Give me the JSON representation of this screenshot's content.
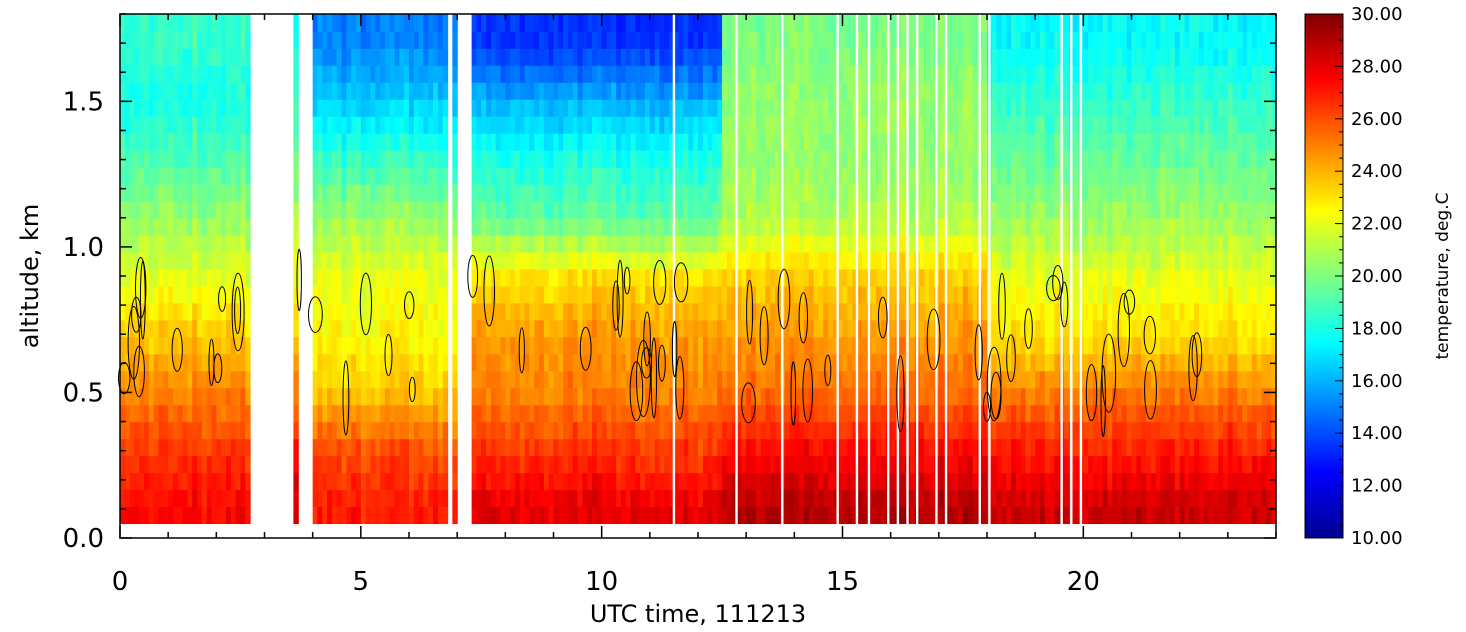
{
  "chart_data": {
    "type": "heatmap",
    "title": "",
    "xlabel": "UTC time, 111213",
    "ylabel": "altitude, km",
    "xlim": [
      0,
      24
    ],
    "ylim": [
      0,
      1.8
    ],
    "x_ticks": [
      0,
      5,
      10,
      15,
      20
    ],
    "y_ticks": [
      "0.0",
      "0.5",
      "1.0",
      "1.5"
    ],
    "colorbar": {
      "label": "temperature, deg.C",
      "range": [
        10,
        30
      ],
      "ticks": [
        "10.00",
        "12.00",
        "14.00",
        "16.00",
        "18.00",
        "20.00",
        "22.00",
        "24.00",
        "26.00",
        "28.00",
        "30.00"
      ],
      "colormap": "jet"
    },
    "altitude_range_km": [
      0.05,
      1.8
    ],
    "data_gaps_utc": [
      [
        2.7,
        3.6
      ],
      [
        3.75,
        4.0
      ],
      [
        6.75,
        6.85
      ],
      [
        6.95,
        7.3
      ]
    ],
    "missing_profiles_utc": [
      11.5,
      12.8,
      13.75,
      14.9,
      15.3,
      15.55,
      15.95,
      16.15,
      16.35,
      16.55,
      16.95,
      17.15,
      17.85,
      18.05,
      19.55,
      19.75,
      19.95
    ],
    "temperature_profiles": [
      {
        "time_range": [
          0,
          2.7
        ],
        "altitude_km": [
          0.1,
          0.3,
          0.5,
          0.7,
          0.9,
          1.1,
          1.3,
          1.5,
          1.7
        ],
        "temperature_c": [
          27.5,
          26.5,
          25.0,
          23.5,
          22.0,
          20.5,
          19.0,
          18.0,
          18.5
        ]
      },
      {
        "time_range": [
          4.0,
          7.3
        ],
        "altitude_km": [
          0.1,
          0.3,
          0.5,
          0.7,
          0.9,
          1.1,
          1.3,
          1.5,
          1.7
        ],
        "temperature_c": [
          27.0,
          26.0,
          23.5,
          22.5,
          22.0,
          20.5,
          18.5,
          16.5,
          15.0
        ]
      },
      {
        "time_range": [
          7.3,
          12.5
        ],
        "altitude_km": [
          0.1,
          0.3,
          0.5,
          0.7,
          0.9,
          1.1,
          1.3,
          1.5,
          1.7
        ],
        "temperature_c": [
          28.0,
          26.5,
          25.0,
          24.5,
          23.0,
          19.5,
          18.0,
          16.0,
          13.5
        ]
      },
      {
        "time_range": [
          12.5,
          18.0
        ],
        "altitude_km": [
          0.1,
          0.3,
          0.5,
          0.7,
          0.9,
          1.1,
          1.3,
          1.5,
          1.7
        ],
        "temperature_c": [
          29.0,
          27.5,
          25.5,
          24.5,
          23.5,
          21.0,
          20.5,
          20.5,
          20.0
        ]
      },
      {
        "time_range": [
          18.0,
          24.0
        ],
        "altitude_km": [
          0.1,
          0.3,
          0.5,
          0.7,
          0.9,
          1.1,
          1.3,
          1.5,
          1.7
        ],
        "temperature_c": [
          28.5,
          27.0,
          25.0,
          23.0,
          22.0,
          20.5,
          19.5,
          18.5,
          17.5
        ]
      }
    ]
  }
}
